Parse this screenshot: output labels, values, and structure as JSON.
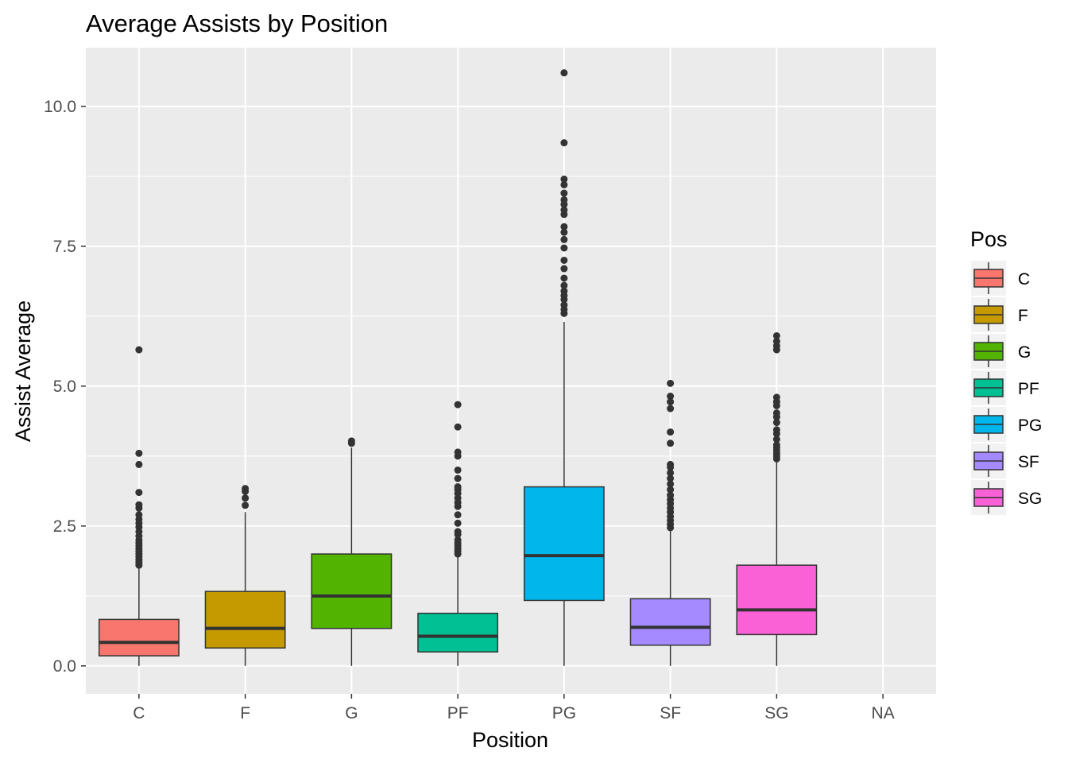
{
  "chart_data": {
    "type": "boxplot",
    "title": "Average Assists by Position",
    "xlabel": "Position",
    "ylabel": "Assist Average",
    "categories": [
      "C",
      "F",
      "G",
      "PF",
      "PG",
      "SF",
      "SG",
      "NA"
    ],
    "ylim": [
      -0.5,
      11.05
    ],
    "yticks": [
      0.0,
      2.5,
      5.0,
      7.5,
      10.0
    ],
    "ytick_labels": [
      "0.0",
      "2.5",
      "5.0",
      "7.5",
      "10.0"
    ],
    "grid": true,
    "legend": {
      "title": "Pos",
      "placement": "right",
      "entries": [
        "C",
        "F",
        "G",
        "PF",
        "PG",
        "SF",
        "SG"
      ]
    },
    "boxes": [
      {
        "category": "C",
        "color": "#F8766D",
        "min": 0.0,
        "q1": 0.18,
        "median": 0.42,
        "q3": 0.83,
        "max": 1.78,
        "outliers": [
          1.8,
          1.85,
          1.9,
          1.95,
          2.0,
          2.05,
          2.1,
          2.15,
          2.2,
          2.25,
          2.32,
          2.4,
          2.48,
          2.55,
          2.62,
          2.7,
          2.82,
          2.88,
          3.1,
          3.6,
          3.8,
          5.65
        ]
      },
      {
        "category": "F",
        "color": "#C49A00",
        "min": 0.0,
        "q1": 0.32,
        "median": 0.67,
        "q3": 1.33,
        "max": 2.75,
        "outliers": [
          2.87,
          3.0,
          3.12,
          3.17
        ]
      },
      {
        "category": "G",
        "color": "#53B400",
        "min": 0.0,
        "q1": 0.67,
        "median": 1.25,
        "q3": 2.0,
        "max": 3.9,
        "outliers": [
          3.98,
          4.02
        ]
      },
      {
        "category": "PF",
        "color": "#00C094",
        "min": 0.0,
        "q1": 0.25,
        "median": 0.53,
        "q3": 0.94,
        "max": 1.96,
        "outliers": [
          2.0,
          2.05,
          2.1,
          2.15,
          2.2,
          2.25,
          2.35,
          2.4,
          2.55,
          2.7,
          2.85,
          2.92,
          3.0,
          3.08,
          3.15,
          3.2,
          3.35,
          3.5,
          3.75,
          3.82,
          4.27,
          4.67
        ]
      },
      {
        "category": "PG",
        "color": "#00B6EB",
        "min": 0.0,
        "q1": 1.17,
        "median": 1.97,
        "q3": 3.2,
        "max": 6.15,
        "outliers": [
          6.3,
          6.37,
          6.45,
          6.55,
          6.62,
          6.7,
          6.8,
          6.93,
          7.1,
          7.25,
          7.47,
          7.62,
          7.75,
          7.85,
          8.07,
          8.15,
          8.25,
          8.33,
          8.45,
          8.6,
          8.7,
          9.35,
          10.6
        ]
      },
      {
        "category": "SF",
        "color": "#A58AFF",
        "min": 0.0,
        "q1": 0.37,
        "median": 0.69,
        "q3": 1.2,
        "max": 2.42,
        "outliers": [
          2.47,
          2.53,
          2.6,
          2.67,
          2.75,
          2.82,
          2.9,
          2.97,
          3.05,
          3.15,
          3.25,
          3.35,
          3.45,
          3.55,
          3.6,
          3.98,
          4.18,
          4.6,
          4.72,
          4.82,
          5.05
        ]
      },
      {
        "category": "SG",
        "color": "#FB61D7",
        "min": 0.0,
        "q1": 0.56,
        "median": 1.0,
        "q3": 1.8,
        "max": 3.67,
        "outliers": [
          3.7,
          3.75,
          3.8,
          3.85,
          3.9,
          3.95,
          4.05,
          4.15,
          4.22,
          4.35,
          4.45,
          4.52,
          4.65,
          4.72,
          4.8,
          5.65,
          5.72,
          5.8,
          5.9
        ]
      }
    ]
  }
}
